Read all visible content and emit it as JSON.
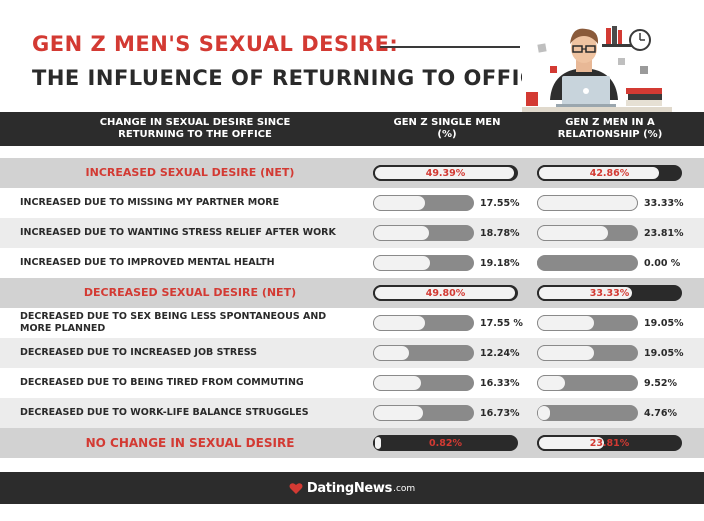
{
  "title": {
    "line1": "GEN Z MEN'S SEXUAL DESIRE:",
    "line2": "THE INFLUENCE OF RETURNING TO OFFICE"
  },
  "header": {
    "description": "CHANGE IN SEXUAL DESIRE SINCE RETURNING TO THE OFFICE",
    "single": "GEN Z SINGLE MEN (%)",
    "relationship": "GEN Z MEN IN A RELATIONSHIP (%)"
  },
  "chart_data": {
    "type": "table",
    "columns": [
      "GEN Z SINGLE MEN (%)",
      "GEN Z MEN IN A RELATIONSHIP (%)"
    ],
    "rows": [
      {
        "label": "INCREASED SEXUAL DESIRE (NET)",
        "kind": "net",
        "single": 49.39,
        "single_text": "49.39%",
        "relationship": 42.86,
        "relationship_text": "42.86%"
      },
      {
        "label": "INCREASED DUE TO MISSING MY PARTNER MORE",
        "kind": "item",
        "single": 17.55,
        "single_text": "17.55%",
        "relationship": 33.33,
        "relationship_text": "33.33%"
      },
      {
        "label": "INCREASED DUE TO WANTING STRESS RELIEF AFTER WORK",
        "kind": "item",
        "single": 18.78,
        "single_text": "18.78%",
        "relationship": 23.81,
        "relationship_text": "23.81%"
      },
      {
        "label": "INCREASED DUE TO IMPROVED MENTAL HEALTH",
        "kind": "item",
        "single": 19.18,
        "single_text": "19.18%",
        "relationship": 0.0,
        "relationship_text": "0.00 %"
      },
      {
        "label": "DECREASED SEXUAL DESIRE (NET)",
        "kind": "net",
        "single": 49.8,
        "single_text": "49.80%",
        "relationship": 33.33,
        "relationship_text": "33.33%"
      },
      {
        "label": "DECREASED DUE TO SEX BEING LESS SPONTANEOUS AND MORE PLANNED",
        "kind": "item",
        "single": 17.55,
        "single_text": "17.55 %",
        "relationship": 19.05,
        "relationship_text": "19.05%"
      },
      {
        "label": "DECREASED DUE TO INCREASED JOB STRESS",
        "kind": "item",
        "single": 12.24,
        "single_text": "12.24%",
        "relationship": 19.05,
        "relationship_text": "19.05%"
      },
      {
        "label": "DECREASED DUE TO BEING TIRED FROM COMMUTING",
        "kind": "item",
        "single": 16.33,
        "single_text": "16.33%",
        "relationship": 9.52,
        "relationship_text": "9.52%"
      },
      {
        "label": "DECREASED DUE TO WORK-LIFE BALANCE STRUGGLES",
        "kind": "item",
        "single": 16.73,
        "single_text": "16.73%",
        "relationship": 4.76,
        "relationship_text": "4.76%"
      },
      {
        "label": "NO CHANGE IN SEXUAL DESIRE",
        "kind": "net",
        "single": 0.82,
        "single_text": "0.82%",
        "relationship": 23.81,
        "relationship_text": "23.81%"
      }
    ]
  },
  "footer": {
    "brand": "DatingNews",
    "tld": ".com"
  },
  "colors": {
    "accent_red": "#d33a33",
    "dark": "#2c2c2c",
    "bar_grey": "#8a8a8a"
  }
}
